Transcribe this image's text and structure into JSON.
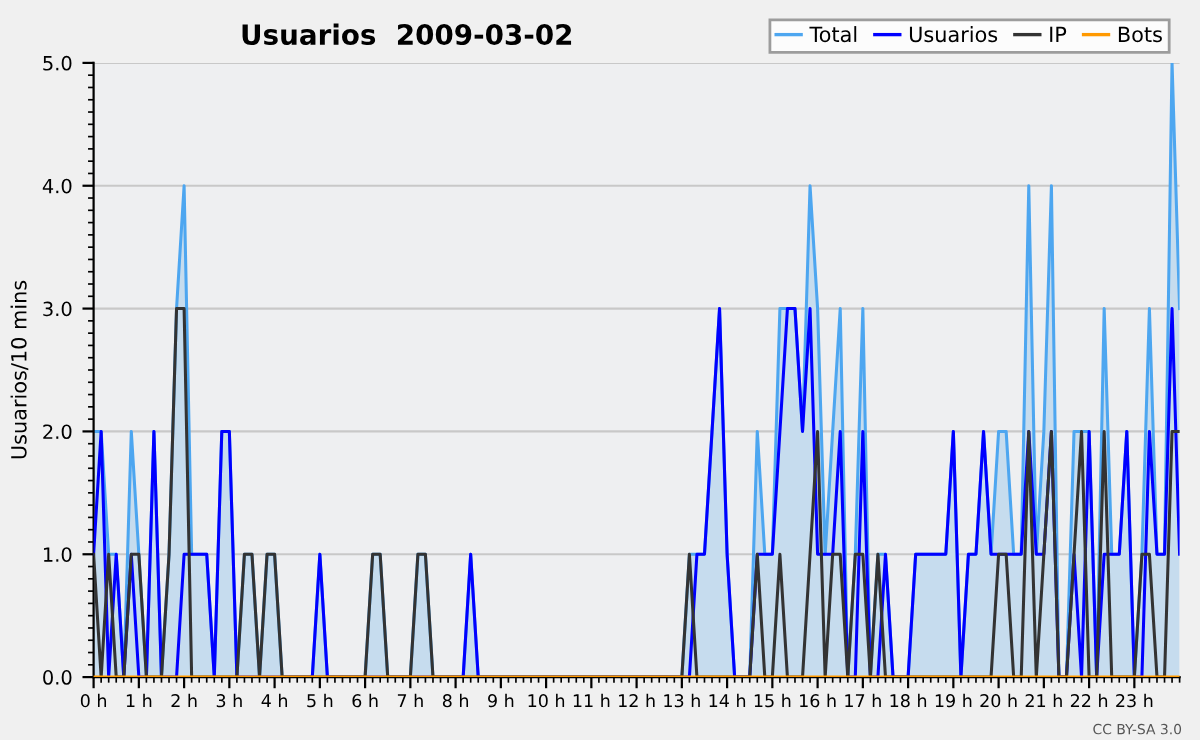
{
  "chart_data": {
    "type": "line",
    "title": "Usuarios  2009-03-02",
    "ylabel": "Usuarios/10 mins",
    "x": [
      0,
      0.167,
      0.333,
      0.5,
      0.667,
      0.833,
      1,
      1.167,
      1.333,
      1.5,
      1.667,
      1.833,
      2,
      2.167,
      2.333,
      2.5,
      2.667,
      2.833,
      3,
      3.167,
      3.333,
      3.5,
      3.667,
      3.833,
      4,
      4.167,
      4.333,
      4.5,
      4.667,
      4.833,
      5,
      5.167,
      5.333,
      5.5,
      5.667,
      5.833,
      6,
      6.167,
      6.333,
      6.5,
      6.667,
      6.833,
      7,
      7.167,
      7.333,
      7.5,
      7.667,
      7.833,
      8,
      8.167,
      8.333,
      8.5,
      8.667,
      8.833,
      9,
      9.167,
      9.333,
      9.5,
      9.667,
      9.833,
      10,
      10.167,
      10.333,
      10.5,
      10.667,
      10.833,
      11,
      11.167,
      11.333,
      11.5,
      11.667,
      11.833,
      12,
      12.167,
      12.333,
      12.5,
      12.667,
      12.833,
      13,
      13.167,
      13.333,
      13.5,
      13.667,
      13.833,
      14,
      14.167,
      14.333,
      14.5,
      14.667,
      14.833,
      15,
      15.167,
      15.333,
      15.5,
      15.667,
      15.833,
      16,
      16.167,
      16.333,
      16.5,
      16.667,
      16.833,
      17,
      17.167,
      17.333,
      17.5,
      17.667,
      17.833,
      18,
      18.167,
      18.333,
      18.5,
      18.667,
      18.833,
      19,
      19.167,
      19.333,
      19.5,
      19.667,
      19.833,
      20,
      20.167,
      20.333,
      20.5,
      20.667,
      20.833,
      21,
      21.167,
      21.333,
      21.5,
      21.667,
      21.833,
      22,
      22.167,
      22.333,
      22.5,
      22.667,
      22.833,
      23,
      23.167,
      23.333,
      23.5,
      23.667,
      23.833,
      24
    ],
    "series": [
      {
        "name": "Total",
        "type": "area",
        "color": "#4da6f0",
        "values": [
          2,
          2,
          1,
          1,
          0,
          2,
          1,
          0,
          2,
          0,
          1,
          3,
          4,
          1,
          1,
          1,
          0,
          2,
          2,
          0,
          1,
          1,
          0,
          1,
          1,
          0,
          0,
          0,
          0,
          0,
          1,
          0,
          0,
          0,
          0,
          0,
          0,
          1,
          1,
          0,
          0,
          0,
          0,
          1,
          1,
          0,
          0,
          0,
          0,
          0,
          1,
          0,
          0,
          0,
          0,
          0,
          0,
          0,
          0,
          0,
          0,
          0,
          0,
          0,
          0,
          0,
          0,
          0,
          0,
          0,
          0,
          0,
          0,
          0,
          0,
          0,
          0,
          0,
          0,
          1,
          1,
          1,
          2,
          3,
          1,
          0,
          0,
          0,
          2,
          1,
          1,
          3,
          3,
          3,
          2,
          4,
          3,
          1,
          2,
          3,
          0,
          1,
          3,
          0,
          1,
          1,
          0,
          0,
          0,
          1,
          1,
          1,
          1,
          1,
          2,
          0,
          1,
          1,
          2,
          1,
          2,
          2,
          1,
          1,
          4,
          1,
          2,
          4,
          0,
          0,
          2,
          2,
          2,
          0,
          3,
          1,
          1,
          2,
          0,
          1,
          3,
          1,
          1,
          5,
          3
        ]
      },
      {
        "name": "Usuarios",
        "color": "#0000ff",
        "values": [
          1,
          2,
          0,
          1,
          0,
          1,
          0,
          0,
          2,
          0,
          0,
          0,
          1,
          1,
          1,
          1,
          0,
          2,
          2,
          0,
          0,
          0,
          0,
          0,
          0,
          0,
          0,
          0,
          0,
          0,
          1,
          0,
          0,
          0,
          0,
          0,
          0,
          0,
          0,
          0,
          0,
          0,
          0,
          0,
          0,
          0,
          0,
          0,
          0,
          0,
          1,
          0,
          0,
          0,
          0,
          0,
          0,
          0,
          0,
          0,
          0,
          0,
          0,
          0,
          0,
          0,
          0,
          0,
          0,
          0,
          0,
          0,
          0,
          0,
          0,
          0,
          0,
          0,
          0,
          0,
          1,
          1,
          2,
          3,
          1,
          0,
          0,
          0,
          1,
          1,
          1,
          2,
          3,
          3,
          2,
          3,
          1,
          1,
          1,
          2,
          0,
          0,
          2,
          0,
          0,
          1,
          0,
          0,
          0,
          1,
          1,
          1,
          1,
          1,
          2,
          0,
          1,
          1,
          2,
          1,
          1,
          1,
          1,
          1,
          2,
          1,
          1,
          2,
          0,
          0,
          1,
          0,
          2,
          0,
          1,
          1,
          1,
          2,
          0,
          0,
          2,
          1,
          1,
          3,
          1
        ]
      },
      {
        "name": "IP",
        "color": "#333333",
        "values": [
          1,
          0,
          1,
          0,
          0,
          1,
          1,
          0,
          0,
          0,
          1,
          3,
          3,
          0,
          0,
          0,
          0,
          0,
          0,
          0,
          1,
          1,
          0,
          1,
          1,
          0,
          0,
          0,
          0,
          0,
          0,
          0,
          0,
          0,
          0,
          0,
          0,
          1,
          1,
          0,
          0,
          0,
          0,
          1,
          1,
          0,
          0,
          0,
          0,
          0,
          0,
          0,
          0,
          0,
          0,
          0,
          0,
          0,
          0,
          0,
          0,
          0,
          0,
          0,
          0,
          0,
          0,
          0,
          0,
          0,
          0,
          0,
          0,
          0,
          0,
          0,
          0,
          0,
          0,
          1,
          0,
          0,
          0,
          0,
          0,
          0,
          0,
          0,
          1,
          0,
          0,
          1,
          0,
          0,
          0,
          1,
          2,
          0,
          1,
          1,
          0,
          1,
          1,
          0,
          1,
          0,
          0,
          0,
          0,
          0,
          0,
          0,
          0,
          0,
          0,
          0,
          0,
          0,
          0,
          0,
          1,
          1,
          0,
          0,
          2,
          0,
          1,
          2,
          0,
          0,
          1,
          2,
          0,
          0,
          2,
          0,
          0,
          0,
          0,
          1,
          1,
          0,
          0,
          2,
          2
        ]
      },
      {
        "name": "Bots",
        "color": "#ff9900",
        "values": [
          0,
          0,
          0,
          0,
          0,
          0,
          0,
          0,
          0,
          0,
          0,
          0,
          0,
          0,
          0,
          0,
          0,
          0,
          0,
          0,
          0,
          0,
          0,
          0,
          0,
          0,
          0,
          0,
          0,
          0,
          0,
          0,
          0,
          0,
          0,
          0,
          0,
          0,
          0,
          0,
          0,
          0,
          0,
          0,
          0,
          0,
          0,
          0,
          0,
          0,
          0,
          0,
          0,
          0,
          0,
          0,
          0,
          0,
          0,
          0,
          0,
          0,
          0,
          0,
          0,
          0,
          0,
          0,
          0,
          0,
          0,
          0,
          0,
          0,
          0,
          0,
          0,
          0,
          0,
          0,
          0,
          0,
          0,
          0,
          0,
          0,
          0,
          0,
          0,
          0,
          0,
          0,
          0,
          0,
          0,
          0,
          0,
          0,
          0,
          0,
          0,
          0,
          0,
          0,
          0,
          0,
          0,
          0,
          0,
          0,
          0,
          0,
          0,
          0,
          0,
          0,
          0,
          0,
          0,
          0,
          0,
          0,
          0,
          0,
          0,
          0,
          0,
          0,
          0,
          0,
          0,
          0,
          0,
          0,
          0,
          0,
          0,
          0,
          0,
          0,
          0,
          0,
          0,
          0,
          0
        ]
      }
    ],
    "xlim": [
      0,
      24
    ],
    "xticks": [
      {
        "value": 0,
        "label": "0 h"
      },
      {
        "value": 1,
        "label": "1 h"
      },
      {
        "value": 2,
        "label": "2 h"
      },
      {
        "value": 3,
        "label": "3 h"
      },
      {
        "value": 4,
        "label": "4 h"
      },
      {
        "value": 5,
        "label": "5 h"
      },
      {
        "value": 6,
        "label": "6 h"
      },
      {
        "value": 7,
        "label": "7 h"
      },
      {
        "value": 8,
        "label": "8 h"
      },
      {
        "value": 9,
        "label": "9 h"
      },
      {
        "value": 10,
        "label": "10 h"
      },
      {
        "value": 11,
        "label": "11 h"
      },
      {
        "value": 12,
        "label": "12 h"
      },
      {
        "value": 13,
        "label": "13 h"
      },
      {
        "value": 14,
        "label": "14 h"
      },
      {
        "value": 15,
        "label": "15 h"
      },
      {
        "value": 16,
        "label": "16 h"
      },
      {
        "value": 17,
        "label": "17 h"
      },
      {
        "value": 18,
        "label": "18 h"
      },
      {
        "value": 19,
        "label": "19 h"
      },
      {
        "value": 20,
        "label": "20 h"
      },
      {
        "value": 21,
        "label": "21 h"
      },
      {
        "value": 22,
        "label": "22 h"
      },
      {
        "value": 23,
        "label": "23 h"
      }
    ],
    "ylim": [
      0,
      5
    ],
    "yticks": [
      {
        "value": 0,
        "label": "0.0"
      },
      {
        "value": 1,
        "label": "1.0"
      },
      {
        "value": 2,
        "label": "2.0"
      },
      {
        "value": 3,
        "label": "3.0"
      },
      {
        "value": 4,
        "label": "4.0"
      },
      {
        "value": 5,
        "label": "5.0"
      }
    ],
    "grid": "y",
    "legend": "top right",
    "marker": "none",
    "line_style": "solid",
    "annotations": [
      "CC BY-SA 3.0"
    ]
  }
}
